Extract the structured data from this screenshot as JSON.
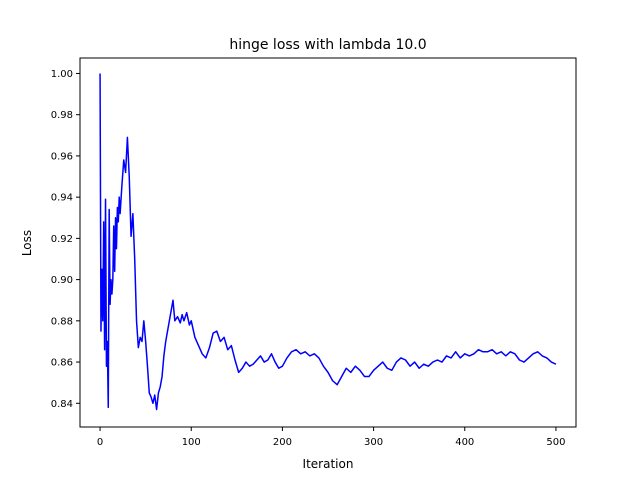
{
  "chart_data": {
    "type": "line",
    "title": "hinge loss with lambda 10.0",
    "xlabel": "Iteration",
    "ylabel": "Loss",
    "xlim": [
      -22,
      522
    ],
    "ylim": [
      0.8285,
      1.0075
    ],
    "x_ticks": [
      0,
      100,
      200,
      300,
      400,
      500
    ],
    "x_tick_labels": [
      "0",
      "100",
      "200",
      "300",
      "400",
      "500"
    ],
    "y_ticks": [
      0.84,
      0.86,
      0.88,
      0.9,
      0.92,
      0.94,
      0.96,
      0.98,
      1.0
    ],
    "y_tick_labels": [
      "0.84",
      "0.86",
      "0.88",
      "0.90",
      "0.92",
      "0.94",
      "0.96",
      "0.98",
      "1.00"
    ],
    "grid": false,
    "legend": false,
    "series": [
      {
        "color": "#0000ff",
        "x": [
          0,
          1,
          2,
          3,
          4,
          5,
          6,
          7,
          8,
          9,
          10,
          11,
          12,
          13,
          14,
          15,
          16,
          17,
          18,
          19,
          20,
          21,
          22,
          24,
          26,
          28,
          30,
          32,
          34,
          36,
          38,
          40,
          42,
          44,
          46,
          48,
          50,
          52,
          54,
          56,
          58,
          60,
          62,
          64,
          66,
          68,
          70,
          72,
          74,
          76,
          78,
          80,
          82,
          85,
          88,
          90,
          92,
          95,
          98,
          100,
          104,
          108,
          112,
          116,
          120,
          124,
          128,
          132,
          136,
          140,
          144,
          148,
          152,
          156,
          160,
          164,
          168,
          172,
          176,
          180,
          184,
          188,
          192,
          196,
          200,
          205,
          210,
          215,
          220,
          225,
          230,
          235,
          240,
          245,
          250,
          255,
          260,
          265,
          270,
          275,
          280,
          285,
          290,
          295,
          300,
          305,
          310,
          315,
          320,
          325,
          330,
          335,
          340,
          345,
          350,
          355,
          360,
          365,
          370,
          375,
          380,
          385,
          390,
          395,
          400,
          405,
          410,
          415,
          420,
          425,
          430,
          435,
          440,
          445,
          450,
          455,
          460,
          465,
          470,
          475,
          480,
          485,
          490,
          495,
          500
        ],
        "y": [
          1.0,
          0.875,
          0.905,
          0.88,
          0.928,
          0.866,
          0.939,
          0.858,
          0.87,
          0.838,
          0.934,
          0.888,
          0.9,
          0.893,
          0.9,
          0.926,
          0.904,
          0.93,
          0.915,
          0.935,
          0.928,
          0.94,
          0.932,
          0.946,
          0.958,
          0.952,
          0.969,
          0.95,
          0.921,
          0.932,
          0.91,
          0.88,
          0.867,
          0.872,
          0.87,
          0.88,
          0.87,
          0.858,
          0.845,
          0.843,
          0.84,
          0.844,
          0.837,
          0.845,
          0.848,
          0.853,
          0.863,
          0.87,
          0.875,
          0.88,
          0.885,
          0.89,
          0.88,
          0.882,
          0.879,
          0.883,
          0.88,
          0.884,
          0.878,
          0.88,
          0.872,
          0.868,
          0.864,
          0.862,
          0.867,
          0.874,
          0.875,
          0.87,
          0.872,
          0.866,
          0.868,
          0.861,
          0.855,
          0.857,
          0.86,
          0.858,
          0.859,
          0.861,
          0.863,
          0.86,
          0.861,
          0.864,
          0.86,
          0.857,
          0.858,
          0.862,
          0.865,
          0.866,
          0.864,
          0.865,
          0.863,
          0.864,
          0.862,
          0.858,
          0.855,
          0.851,
          0.849,
          0.853,
          0.857,
          0.855,
          0.858,
          0.856,
          0.853,
          0.853,
          0.856,
          0.858,
          0.86,
          0.857,
          0.856,
          0.86,
          0.862,
          0.861,
          0.858,
          0.86,
          0.857,
          0.859,
          0.858,
          0.86,
          0.861,
          0.86,
          0.863,
          0.862,
          0.865,
          0.862,
          0.864,
          0.863,
          0.864,
          0.866,
          0.865,
          0.865,
          0.866,
          0.864,
          0.865,
          0.863,
          0.865,
          0.864,
          0.861,
          0.86,
          0.862,
          0.864,
          0.865,
          0.863,
          0.862,
          0.86,
          0.859
        ]
      }
    ]
  }
}
